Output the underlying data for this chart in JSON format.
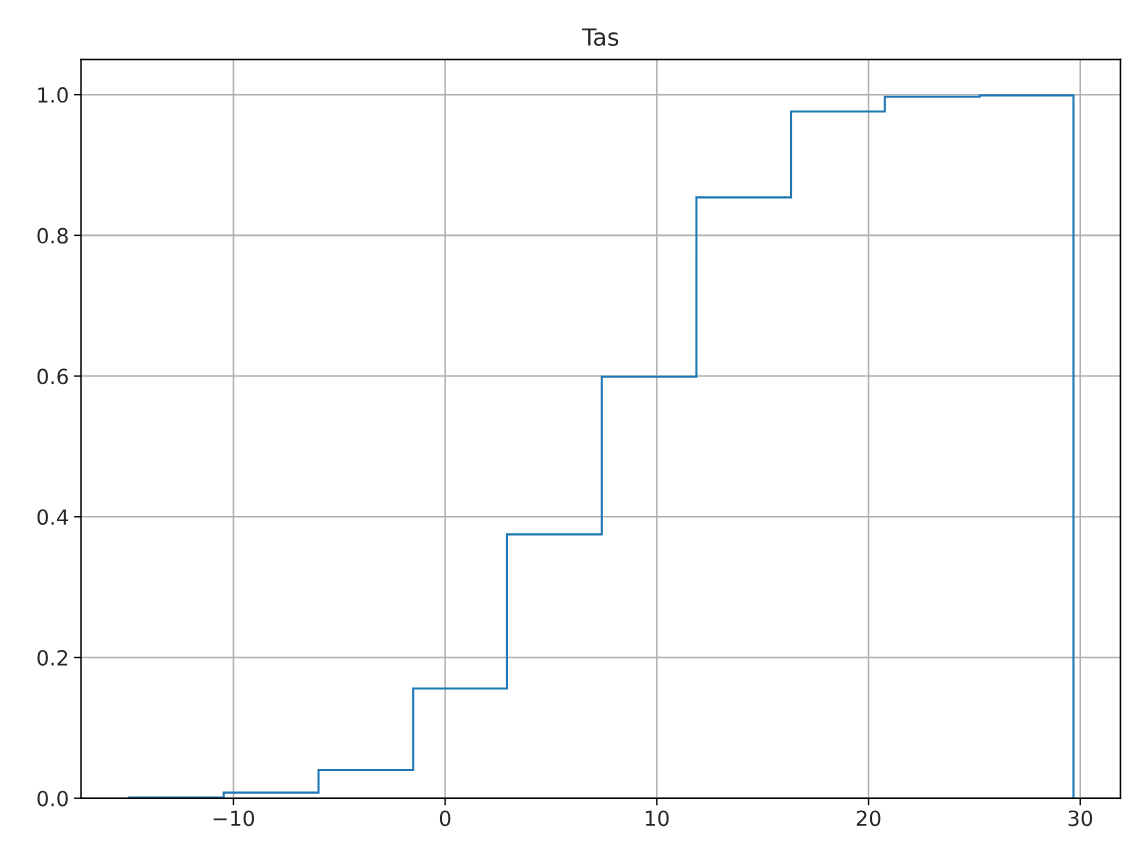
{
  "chart_data": {
    "type": "histogram",
    "title": "Tas",
    "bins": [
      -14.93,
      -10.46,
      -5.98,
      -1.51,
      2.92,
      7.4,
      11.87,
      16.34,
      20.77,
      25.25,
      29.68
    ],
    "values": [
      0.001,
      0.008,
      0.04,
      0.156,
      0.375,
      0.599,
      0.854,
      0.976,
      0.997,
      0.999
    ],
    "color": "#1f77b4",
    "xlim": [
      -17.2,
      31.9
    ],
    "ylim": [
      0,
      1.05
    ],
    "xticks": [
      {
        "value": -10,
        "label": "−10"
      },
      0,
      10,
      20,
      30
    ],
    "yticks": [
      {
        "value": 0,
        "label": "0.0"
      },
      0.2,
      0.4,
      0.6,
      0.8,
      {
        "value": 1,
        "label": "1.0"
      }
    ],
    "grid": true
  }
}
